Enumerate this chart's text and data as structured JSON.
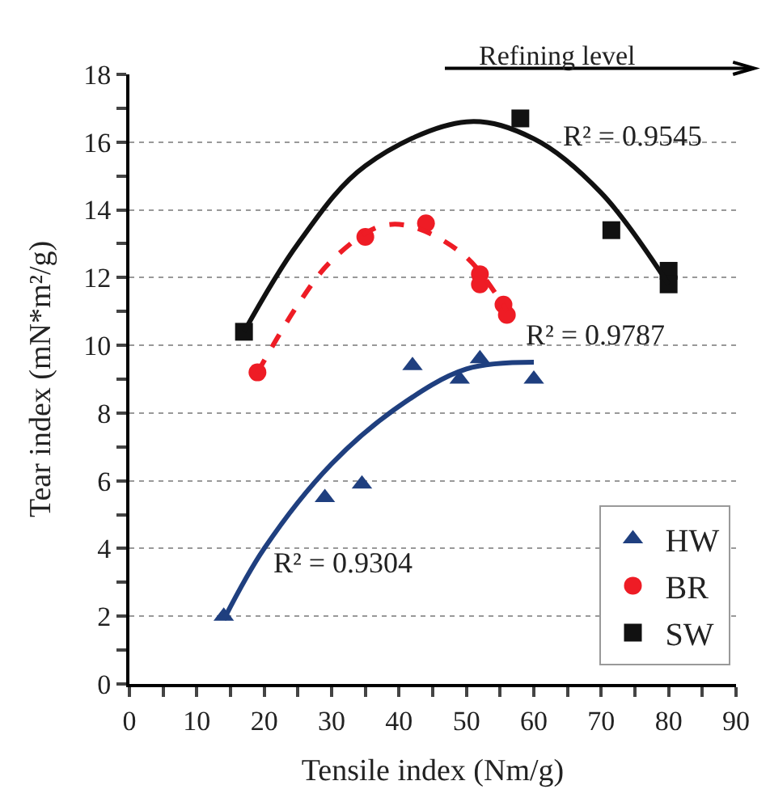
{
  "chart_data": {
    "type": "scatter",
    "xlabel": "Tensile index (Nm/g)",
    "ylabel": "Tear index (mN*m²/g)",
    "xlim": [
      0,
      90
    ],
    "xticks": [
      0,
      10,
      20,
      30,
      40,
      50,
      60,
      70,
      80,
      90
    ],
    "ylim": [
      0,
      18
    ],
    "yticks": [
      0,
      2,
      4,
      6,
      8,
      10,
      12,
      14,
      16,
      18
    ],
    "grid": "y",
    "legend": "bottom right",
    "series": [
      {
        "name": "HW",
        "color": "#1f3f7f",
        "marker": "triangle",
        "x": [
          14,
          29,
          34.5,
          42,
          49,
          52,
          60
        ],
        "values": [
          2,
          5.5,
          5.9,
          9.4,
          9,
          9.6,
          9
        ]
      },
      {
        "name": "BR",
        "color": "#ee1c25",
        "marker": "circle",
        "x": [
          19,
          35,
          44,
          52,
          52,
          55.5,
          56
        ],
        "values": [
          9.2,
          13.2,
          13.6,
          12.1,
          11.8,
          11.2,
          10.9
        ]
      },
      {
        "name": "SW",
        "color": "#111111",
        "marker": "square",
        "x": [
          17,
          58,
          71.5,
          80,
          80
        ],
        "values": [
          10.4,
          16.7,
          13.4,
          12.2,
          11.8
        ]
      },
      {
        "type": "line",
        "color": "#1f3f7f",
        "line_style": "solid",
        "x": [
          14,
          20,
          30,
          40,
          50,
          60
        ],
        "values": [
          1.9,
          4,
          6.5,
          8.2,
          9.3,
          9.5
        ]
      },
      {
        "type": "line",
        "color": "#ee1c25",
        "line_style": "dashed",
        "x": [
          19,
          25,
          30,
          37,
          42,
          50,
          56
        ],
        "values": [
          9.2,
          11.2,
          12.5,
          13.5,
          13.5,
          12.6,
          11
        ]
      },
      {
        "type": "line",
        "color": "#111111",
        "line_style": "solid",
        "x": [
          17,
          25,
          35,
          50,
          60,
          70,
          80
        ],
        "values": [
          10.4,
          13,
          15.3,
          16.6,
          16.1,
          14.5,
          11.8
        ]
      }
    ],
    "annotations": [
      "R² = 0.9545",
      "R² = 0.9787",
      "R² = 0.9304",
      "Refining level"
    ]
  }
}
